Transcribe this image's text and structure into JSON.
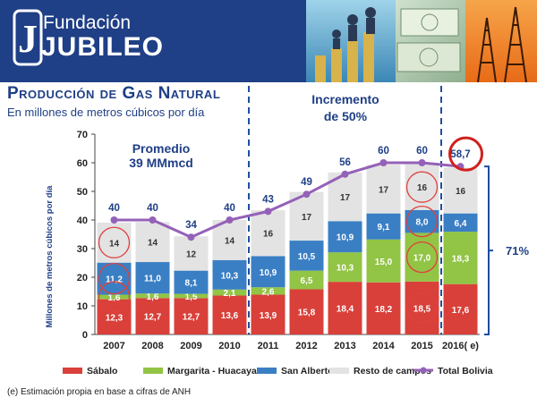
{
  "header": {
    "org_small": "Fundación",
    "org_big": "JUBILEO",
    "logo_letter": "J"
  },
  "title": "Producción de Gas Natural",
  "subtitle": "En millones de metros cúbicos por día",
  "note": "(e) Estimación propia en base a cifras de ANH",
  "colors": {
    "sabalo": "#d9403a",
    "margarita": "#92c445",
    "san_alberto": "#3a7fc4",
    "resto": "#e3e3e3",
    "total": "#9461b8",
    "circle": "#e04040",
    "dash": "#1f4ea0",
    "accent": "#1f3f86"
  },
  "chart_data": {
    "type": "bar",
    "stacked": true,
    "categories": [
      "2007",
      "2008",
      "2009",
      "2010",
      "2011",
      "2012",
      "2013",
      "2014",
      "2015",
      "2016( e)"
    ],
    "series": [
      {
        "name": "Sábalo",
        "values": [
          12.3,
          12.7,
          12.7,
          13.6,
          13.9,
          15.8,
          18.4,
          18.2,
          18.5,
          17.6
        ],
        "labels": [
          "12,3",
          "12,7",
          "12,7",
          "13,6",
          "13,9",
          "15,8",
          "18,4",
          "18,2",
          "18,5",
          "17,6"
        ]
      },
      {
        "name": "Margarita - Huacaya",
        "values": [
          1.6,
          1.6,
          1.5,
          2.1,
          2.6,
          6.5,
          10.3,
          15.0,
          17.0,
          18.3
        ],
        "labels": [
          "1,6",
          "1,6",
          "1,5",
          "2,1",
          "2,6",
          "6,5",
          "10,3",
          "15,0",
          "17,0",
          "18,3"
        ]
      },
      {
        "name": "San Alberto",
        "values": [
          11.2,
          11.0,
          8.1,
          10.3,
          10.9,
          10.5,
          10.9,
          9.1,
          8.0,
          6.4
        ],
        "labels": [
          "11,2",
          "11,0",
          "8,1",
          "10,3",
          "10,9",
          "10,5",
          "10,9",
          "9,1",
          "8,0",
          "6,4"
        ]
      },
      {
        "name": "Resto de campos",
        "values": [
          14,
          14,
          12,
          14,
          16,
          17,
          17,
          17,
          16,
          16
        ],
        "labels": [
          "14",
          "14",
          "12",
          "14",
          "16",
          "17",
          "17",
          "17",
          "16",
          "16"
        ]
      }
    ],
    "total": {
      "name": "Total Bolivia",
      "values": [
        40,
        40,
        34,
        40,
        43,
        49,
        56,
        60,
        60,
        58.7
      ],
      "labels": [
        "40",
        "40",
        "34",
        "40",
        "43",
        "49",
        "56",
        "60",
        "60",
        "58,7"
      ]
    },
    "ylabel": "Millones de metros cúbicos por día",
    "ylim": [
      0,
      70
    ],
    "yticks": [
      "0",
      "10",
      "20",
      "30",
      "40",
      "50",
      "60",
      "70"
    ],
    "annotations": {
      "promedio_line1": "Promedio",
      "promedio_line2": "39 MMmcd",
      "incremento_line1": "Incremento",
      "incremento_line2": "de 50%",
      "bracket_label": "71%"
    }
  }
}
